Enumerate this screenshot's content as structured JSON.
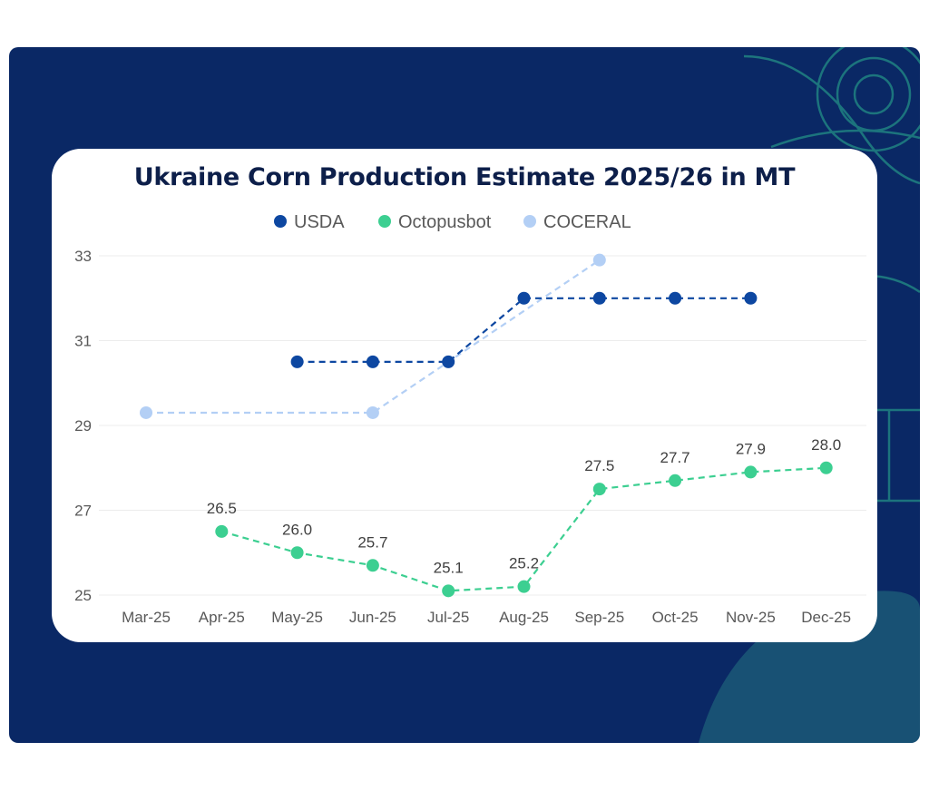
{
  "chart_data": {
    "type": "line",
    "title": "Ukraine Corn Production Estimate 2025/26 in MT",
    "categories": [
      "Mar-25",
      "Apr-25",
      "May-25",
      "Jun-25",
      "Jul-25",
      "Aug-25",
      "Sep-25",
      "Oct-25",
      "Nov-25",
      "Dec-25"
    ],
    "y_ticks": [
      "25",
      "27",
      "29",
      "31",
      "33"
    ],
    "ylim": [
      25,
      33
    ],
    "grid": true,
    "legend_position": "top-center",
    "series": [
      {
        "name": "USDA",
        "color": "#0d47a1",
        "values": [
          null,
          null,
          30.5,
          30.5,
          30.5,
          32.0,
          32.0,
          32.0,
          32.0,
          null
        ],
        "labels": []
      },
      {
        "name": "Octopusbot",
        "color": "#3ccf91",
        "values": [
          null,
          26.5,
          26.0,
          25.7,
          25.1,
          25.2,
          27.5,
          27.7,
          27.9,
          28.0
        ],
        "labels": [
          null,
          "26.5",
          "26.0",
          "25.7",
          "25.1",
          "25.2",
          "27.5",
          "27.7",
          "27.9",
          "28.0"
        ]
      },
      {
        "name": "COCERAL",
        "color": "#b3cff5",
        "values": [
          29.3,
          null,
          null,
          29.3,
          null,
          null,
          32.9,
          null,
          null,
          null
        ],
        "labels": []
      }
    ]
  }
}
